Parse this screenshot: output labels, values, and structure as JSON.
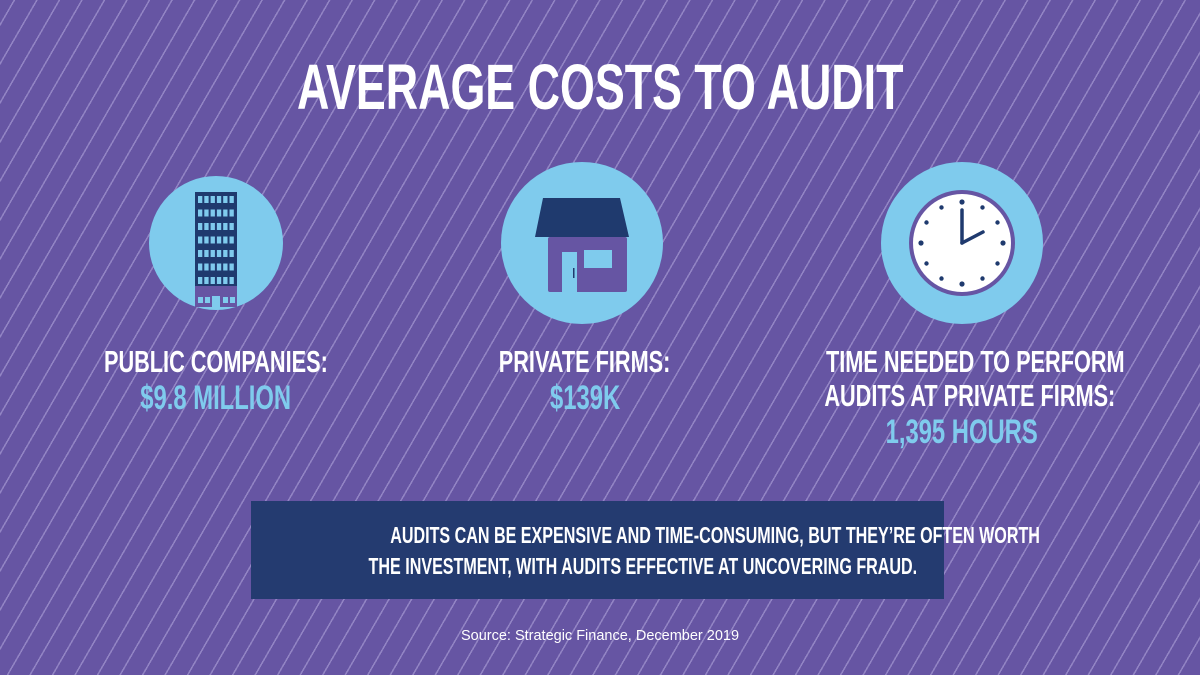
{
  "title": "AVERAGE COSTS TO AUDIT",
  "colors": {
    "background": "#6655a3",
    "circle": "#7fcbed",
    "value": "#7fcbed",
    "box": "#243b70",
    "navy": "#1f3a6e"
  },
  "stats": [
    {
      "icon": "office-building-icon",
      "label_lines": [
        "PUBLIC COMPANIES:"
      ],
      "value": "$9.8 MILLION"
    },
    {
      "icon": "house-icon",
      "label_lines": [
        "PRIVATE FIRMS:"
      ],
      "value": "$139K"
    },
    {
      "icon": "clock-icon",
      "label_lines": [
        "TIME NEEDED TO PERFORM",
        "AUDITS AT PRIVATE FIRMS:"
      ],
      "value": "1,395 HOURS"
    }
  ],
  "callout": {
    "lines": [
      "AUDITS CAN BE EXPENSIVE AND TIME-CONSUMING, BUT THEY’RE OFTEN WORTH",
      "THE INVESTMENT, WITH AUDITS EFFECTIVE AT UNCOVERING FRAUD."
    ]
  },
  "source": "Source: Strategic Finance, December 2019"
}
